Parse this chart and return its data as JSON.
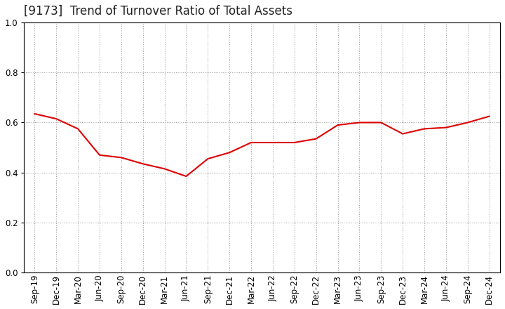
{
  "title": "[9173]  Trend of Turnover Ratio of Total Assets",
  "labels": [
    "Sep-19",
    "Dec-19",
    "Mar-20",
    "Jun-20",
    "Sep-20",
    "Dec-20",
    "Mar-21",
    "Jun-21",
    "Sep-21",
    "Dec-21",
    "Mar-22",
    "Jun-22",
    "Sep-22",
    "Dec-22",
    "Mar-23",
    "Jun-23",
    "Sep-23",
    "Dec-23",
    "Mar-24",
    "Jun-24",
    "Sep-24",
    "Dec-24"
  ],
  "values": [
    0.635,
    0.615,
    0.575,
    0.47,
    0.46,
    0.435,
    0.415,
    0.385,
    0.455,
    0.48,
    0.52,
    0.52,
    0.52,
    0.535,
    0.59,
    0.6,
    0.6,
    0.555,
    0.575,
    0.58,
    0.6,
    0.625
  ],
  "line_color": "#dd0000",
  "line_width": 1.5,
  "ylim": [
    0.0,
    1.0
  ],
  "yticks": [
    0.0,
    0.2,
    0.4,
    0.6,
    0.8,
    1.0
  ],
  "grid_color": "#999999",
  "background_color": "#ffffff",
  "title_fontsize": 12,
  "tick_fontsize": 8.5,
  "title_color": "#222222"
}
